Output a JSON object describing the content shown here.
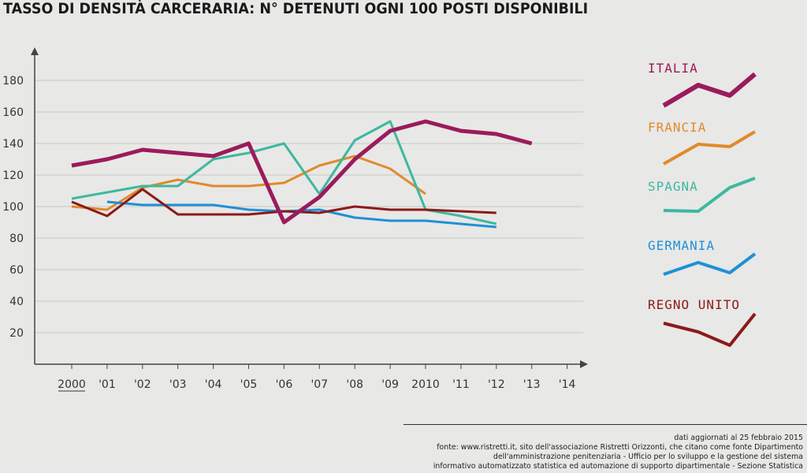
{
  "title": "TASSO DI DENSITÀ CARCERARIA: N° DETENUTI OGNI 100 POSTI DISPONIBILI",
  "footer": {
    "updated": "dati aggiornati al 25 febbraio 2015",
    "source_1": "fonte: www.ristretti.it, sito dell'associazione Ristretti Orizzonti, che citano come fonte Dipartimento",
    "source_2": "dell'amministrazione penitenziaria - Ufficio per lo sviluppo e la gestione del sistema",
    "source_3": "informativo automatizzato statistica ed automazione di supporto dipartimentale - Sezione Statistica"
  },
  "chart_data": {
    "type": "line",
    "title": "TASSO DI DENSITÀ CARCERARIA: N° DETENUTI OGNI 100 POSTI DISPONIBILI",
    "xlabel": "",
    "ylabel": "",
    "categories": [
      "2000",
      "'01",
      "'02",
      "'03",
      "'04",
      "'05",
      "'06",
      "'07",
      "'08",
      "'09",
      "2010",
      "'11",
      "'12",
      "'13",
      "'14"
    ],
    "yticks": [
      20,
      40,
      60,
      80,
      100,
      120,
      140,
      160,
      180
    ],
    "ylim": [
      0,
      200
    ],
    "grid": true,
    "legend_position": "right",
    "series": [
      {
        "name": "ITALIA",
        "color": "#9a1b5c",
        "width": 5,
        "values": [
          126,
          130,
          136,
          134,
          132,
          140,
          90,
          106,
          130,
          148,
          154,
          148,
          146,
          140,
          null
        ]
      },
      {
        "name": "FRANCIA",
        "color": "#e08a2c",
        "width": 3,
        "values": [
          100,
          98,
          112,
          117,
          113,
          113,
          115,
          126,
          132,
          124,
          108,
          null,
          null,
          null,
          null
        ]
      },
      {
        "name": "SPAGNA",
        "color": "#3db8a0",
        "width": 3,
        "values": [
          105,
          109,
          113,
          113,
          130,
          134,
          140,
          108,
          142,
          154,
          98,
          94,
          89,
          null,
          null
        ]
      },
      {
        "name": "GERMANIA",
        "color": "#1e90d8",
        "width": 3,
        "values": [
          null,
          103,
          101,
          101,
          101,
          98,
          97,
          98,
          93,
          91,
          91,
          89,
          87,
          null,
          null
        ]
      },
      {
        "name": "REGNO UNITO",
        "color": "#8b1a1a",
        "width": 3,
        "values": [
          103,
          94,
          111,
          95,
          95,
          95,
          97,
          96,
          100,
          98,
          98,
          97,
          96,
          null,
          null
        ]
      }
    ]
  }
}
